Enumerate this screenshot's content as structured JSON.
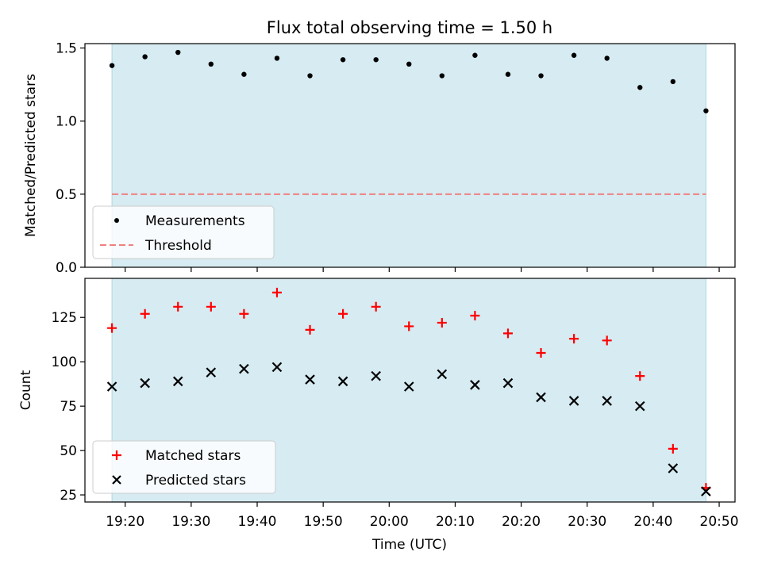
{
  "title": "Flux total observing time = 1.50 h",
  "xlabel": "Time (UTC)",
  "x_tick_labels": [
    "19:20",
    "19:30",
    "19:40",
    "19:50",
    "20:00",
    "20:10",
    "20:20",
    "20:30",
    "20:40",
    "20:50"
  ],
  "colors": {
    "span": "#add8e6",
    "threshold": "#f08080",
    "matched": "#ff0000",
    "predicted": "#000000",
    "measurement": "#000000"
  },
  "chart_data": [
    {
      "type": "scatter",
      "panel": "top",
      "ylabel": "Matched/Predicted stars",
      "ylim": [
        0,
        1.53
      ],
      "y_ticks": [
        0.0,
        0.5,
        1.0,
        1.5
      ],
      "y_tick_labels": [
        "0.0",
        "0.5",
        "1.0",
        "1.5"
      ],
      "legend_placement": "lower-left",
      "shaded_span": [
        "19:18",
        "20:48"
      ],
      "x": [
        "19:18",
        "19:23",
        "19:28",
        "19:33",
        "19:38",
        "19:43",
        "19:48",
        "19:53",
        "19:58",
        "20:03",
        "20:08",
        "20:13",
        "20:18",
        "20:23",
        "20:28",
        "20:33",
        "20:38",
        "20:43",
        "20:48"
      ],
      "series": [
        {
          "name": "Measurements",
          "marker": "dot",
          "values": [
            1.38,
            1.44,
            1.47,
            1.39,
            1.32,
            1.43,
            1.31,
            1.42,
            1.42,
            1.39,
            1.31,
            1.45,
            1.32,
            1.31,
            1.45,
            1.43,
            1.23,
            1.27,
            1.07
          ]
        }
      ],
      "threshold": {
        "name": "Threshold",
        "value": 0.5,
        "style": "dashed"
      }
    },
    {
      "type": "scatter",
      "panel": "bottom",
      "ylabel": "Count",
      "ylim": [
        21,
        147
      ],
      "y_ticks": [
        25,
        50,
        75,
        100,
        125
      ],
      "y_tick_labels": [
        "25",
        "50",
        "75",
        "100",
        "125"
      ],
      "legend_placement": "lower-left",
      "shaded_span": [
        "19:18",
        "20:48"
      ],
      "x": [
        "19:18",
        "19:23",
        "19:28",
        "19:33",
        "19:38",
        "19:43",
        "19:48",
        "19:53",
        "19:58",
        "20:03",
        "20:08",
        "20:13",
        "20:18",
        "20:23",
        "20:28",
        "20:33",
        "20:38",
        "20:43",
        "20:48"
      ],
      "series": [
        {
          "name": "Matched stars",
          "marker": "plus",
          "values": [
            119,
            127,
            131,
            131,
            127,
            139,
            118,
            127,
            131,
            120,
            122,
            126,
            116,
            105,
            113,
            112,
            92,
            51,
            29
          ]
        },
        {
          "name": "Predicted stars",
          "marker": "x",
          "values": [
            86,
            88,
            89,
            94,
            96,
            97,
            90,
            89,
            92,
            86,
            93,
            87,
            88,
            80,
            78,
            78,
            75,
            40,
            27
          ]
        }
      ]
    }
  ]
}
